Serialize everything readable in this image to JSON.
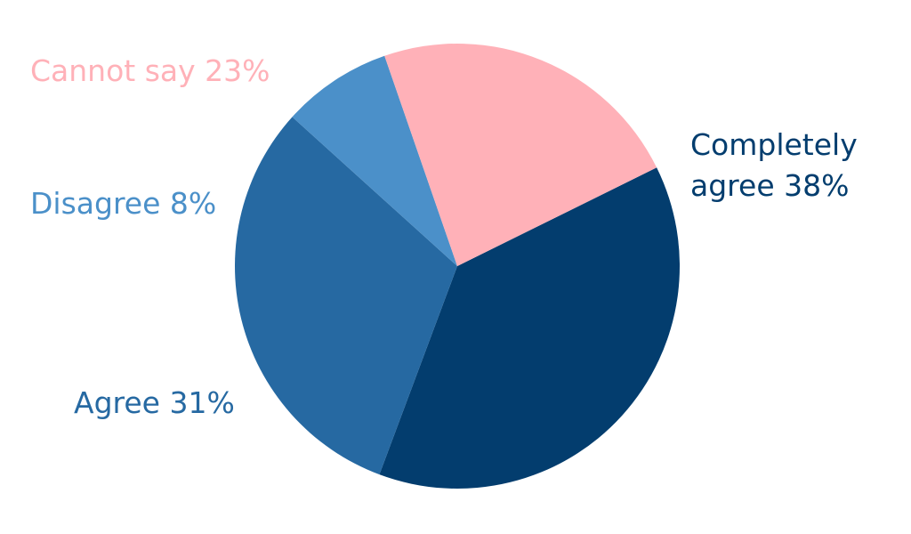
{
  "chart_data": {
    "type": "pie",
    "slices": [
      {
        "label_lines": [
          "Completely",
          "agree 38%"
        ],
        "category": "Completely agree",
        "value": 38,
        "color": "#033d6e"
      },
      {
        "label_lines": [
          "Agree 31%"
        ],
        "category": "Agree",
        "value": 31,
        "color": "#2669a2"
      },
      {
        "label_lines": [
          "Disagree 8%"
        ],
        "category": "Disagree",
        "value": 8,
        "color": "#4b90c9"
      },
      {
        "label_lines": [
          "Cannot say 23%"
        ],
        "category": "Cannot say",
        "value": 23,
        "color": "#ffb1b8"
      }
    ],
    "legend": "none"
  }
}
